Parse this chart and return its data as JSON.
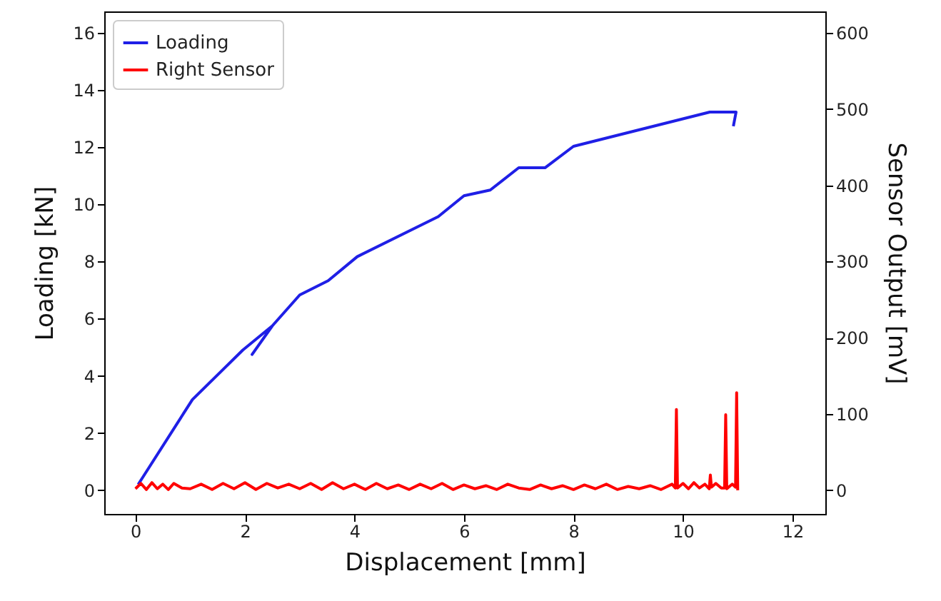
{
  "chart_data": {
    "type": "line",
    "xlabel": "Displacement [mm]",
    "ylabel": "Loading [kN]",
    "y2label": "Sensor Output [mV]",
    "xlim": [
      -0.57,
      12.6
    ],
    "xticks": [
      0,
      2,
      4,
      6,
      8,
      10,
      12
    ],
    "ylim": [
      -0.83,
      16.75
    ],
    "yticks": [
      0,
      2,
      4,
      6,
      8,
      10,
      12,
      14,
      16
    ],
    "y2lim": [
      -31,
      628
    ],
    "y2ticks": [
      0,
      100,
      200,
      300,
      400,
      500,
      600
    ],
    "legend": "top left",
    "grid": false,
    "line_style": "solid",
    "series": [
      {
        "name": "Loading",
        "color": "#1f1fe6",
        "x": [
          0.05,
          1.04,
          1.96,
          2.5,
          2.13,
          2.5,
          3.0,
          3.52,
          4.05,
          5.53,
          6.0,
          6.48,
          7.0,
          7.48,
          8.0,
          10.49,
          10.97,
          10.92
        ],
        "values": [
          0.2,
          3.17,
          4.9,
          5.75,
          4.75,
          5.75,
          6.83,
          7.33,
          8.17,
          9.57,
          10.3,
          10.5,
          11.28,
          11.28,
          12.03,
          13.23,
          13.23,
          12.73
        ]
      },
      {
        "name": "Right Sensor",
        "color": "#ff0000",
        "axis": "y2",
        "x": [
          0,
          0.1,
          0.2,
          0.3,
          0.4,
          0.5,
          0.6,
          0.7,
          0.85,
          1.0,
          1.2,
          1.4,
          1.6,
          1.8,
          2.0,
          2.2,
          2.4,
          2.6,
          2.8,
          3.0,
          3.2,
          3.4,
          3.6,
          3.8,
          4.0,
          4.2,
          4.4,
          4.6,
          4.8,
          5.0,
          5.2,
          5.4,
          5.6,
          5.8,
          6.0,
          6.2,
          6.4,
          6.6,
          6.8,
          7.0,
          7.2,
          7.4,
          7.6,
          7.8,
          8.0,
          8.2,
          8.4,
          8.6,
          8.8,
          9.0,
          9.2,
          9.4,
          9.6,
          9.8,
          9.86,
          9.88,
          9.9,
          10.0,
          10.1,
          10.2,
          10.3,
          10.4,
          10.48,
          10.5,
          10.52,
          10.6,
          10.7,
          10.76,
          10.78,
          10.8,
          10.9,
          10.96,
          10.98,
          11.0
        ],
        "values": [
          2,
          9,
          1,
          10,
          2,
          8,
          1,
          9,
          3,
          2,
          8,
          1,
          9,
          2,
          10,
          1,
          9,
          3,
          8,
          2,
          9,
          1,
          10,
          2,
          8,
          1,
          9,
          2,
          7,
          1,
          8,
          2,
          9,
          1,
          7,
          2,
          6,
          1,
          8,
          3,
          1,
          7,
          2,
          6,
          1,
          7,
          2,
          8,
          1,
          5,
          2,
          6,
          1,
          8,
          3,
          106,
          3,
          9,
          2,
          10,
          3,
          8,
          2,
          20,
          4,
          9,
          3,
          3,
          99,
          2,
          8,
          4,
          128,
          0
        ]
      }
    ]
  }
}
